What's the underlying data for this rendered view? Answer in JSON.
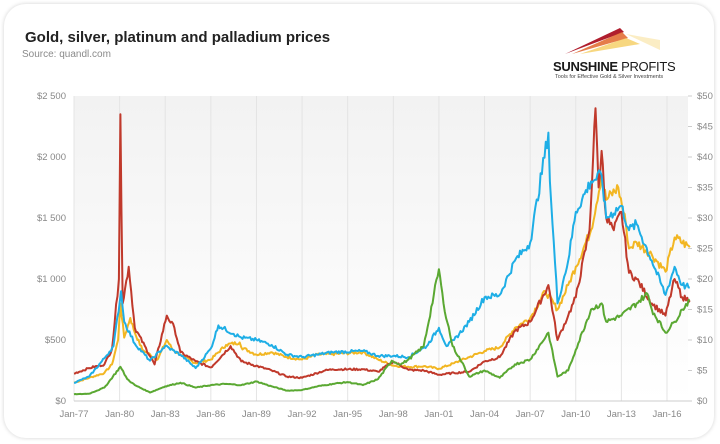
{
  "chart_data": {
    "type": "line",
    "title": "Gold, silver, platinum and palladium prices",
    "subtitle": "Source: quandl.com",
    "x_ticks": [
      "Jan-77",
      "Jan-80",
      "Jan-83",
      "Jan-86",
      "Jan-89",
      "Jan-92",
      "Jan-95",
      "Jan-98",
      "Jan-01",
      "Jan-04",
      "Jan-07",
      "Jan-10",
      "Jan-13",
      "Jan-16"
    ],
    "y_left": {
      "ticks": [
        "$0",
        "$500",
        "$1 000",
        "$1 500",
        "$2 000",
        "$2 500"
      ],
      "range": [
        0,
        2500
      ]
    },
    "y_right": {
      "ticks": [
        "$0",
        "$5",
        "$10",
        "$15",
        "$20",
        "$25",
        "$30",
        "$35",
        "$40",
        "$45",
        "$50"
      ],
      "range": [
        0,
        50
      ]
    },
    "grid": "vertical",
    "legend": "none",
    "series": [
      {
        "color": "#f2b622",
        "axis": "left",
        "points": [
          [
            1977,
            150
          ],
          [
            1978,
            190
          ],
          [
            1979,
            230
          ],
          [
            1979.5,
            300
          ],
          [
            1979.9,
            500
          ],
          [
            1980.05,
            800
          ],
          [
            1980.3,
            520
          ],
          [
            1980.7,
            680
          ],
          [
            1981,
            560
          ],
          [
            1981.5,
            420
          ],
          [
            1982.5,
            340
          ],
          [
            1983.1,
            500
          ],
          [
            1983.5,
            420
          ],
          [
            1984,
            380
          ],
          [
            1985,
            310
          ],
          [
            1986,
            340
          ],
          [
            1987,
            460
          ],
          [
            1987.9,
            480
          ],
          [
            1988,
            440
          ],
          [
            1989,
            380
          ],
          [
            1990,
            400
          ],
          [
            1991,
            360
          ],
          [
            1992,
            340
          ],
          [
            1993,
            380
          ],
          [
            1994,
            385
          ],
          [
            1996,
            400
          ],
          [
            1997,
            340
          ],
          [
            1998,
            290
          ],
          [
            1999,
            280
          ],
          [
            2000,
            285
          ],
          [
            2001,
            265
          ],
          [
            2002,
            310
          ],
          [
            2003,
            360
          ],
          [
            2004,
            410
          ],
          [
            2005,
            440
          ],
          [
            2006,
            600
          ],
          [
            2007,
            680
          ],
          [
            2008,
            900
          ],
          [
            2008.8,
            750
          ],
          [
            2009.5,
            950
          ],
          [
            2010,
            1100
          ],
          [
            2011,
            1400
          ],
          [
            2011.7,
            1850
          ],
          [
            2012,
            1650
          ],
          [
            2012.8,
            1750
          ],
          [
            2013.3,
            1450
          ],
          [
            2013.5,
            1250
          ],
          [
            2014,
            1300
          ],
          [
            2015,
            1200
          ],
          [
            2015.9,
            1060
          ],
          [
            2016.5,
            1340
          ],
          [
            2017.5,
            1260
          ]
        ]
      },
      {
        "color": "#c0392b",
        "axis": "right",
        "points": [
          [
            1977,
            4.5
          ],
          [
            1978,
            5.4
          ],
          [
            1979,
            6
          ],
          [
            1979.5,
            8.5
          ],
          [
            1979.95,
            20
          ],
          [
            1980.05,
            47
          ],
          [
            1980.2,
            16
          ],
          [
            1980.6,
            22
          ],
          [
            1981,
            12
          ],
          [
            1982.3,
            6
          ],
          [
            1983.1,
            14
          ],
          [
            1983.6,
            12
          ],
          [
            1984,
            8
          ],
          [
            1985,
            6.5
          ],
          [
            1986,
            5.5
          ],
          [
            1987.3,
            9
          ],
          [
            1988,
            6.5
          ],
          [
            1990,
            5
          ],
          [
            1991,
            4
          ],
          [
            1992,
            3.8
          ],
          [
            1993.5,
            5
          ],
          [
            1994,
            5.2
          ],
          [
            1996,
            5.2
          ],
          [
            1997,
            4.8
          ],
          [
            1998,
            6.5
          ],
          [
            1999,
            5.1
          ],
          [
            2000,
            5
          ],
          [
            2001,
            4.3
          ],
          [
            2002,
            4.6
          ],
          [
            2003,
            4.8
          ],
          [
            2004,
            6.5
          ],
          [
            2005,
            7.2
          ],
          [
            2006,
            11.5
          ],
          [
            2007,
            13
          ],
          [
            2008.2,
            19
          ],
          [
            2008.8,
            10
          ],
          [
            2009.5,
            14
          ],
          [
            2010,
            17
          ],
          [
            2010.9,
            28
          ],
          [
            2011.3,
            48
          ],
          [
            2011.5,
            35
          ],
          [
            2011.7,
            41
          ],
          [
            2012,
            30
          ],
          [
            2012.5,
            28
          ],
          [
            2013,
            31
          ],
          [
            2013.5,
            21
          ],
          [
            2014,
            20
          ],
          [
            2015,
            16
          ],
          [
            2015.9,
            14
          ],
          [
            2016.5,
            20
          ],
          [
            2017,
            17
          ],
          [
            2017.5,
            16.5
          ]
        ]
      },
      {
        "color": "#1eaee6",
        "axis": "left",
        "points": [
          [
            1977,
            150
          ],
          [
            1978,
            200
          ],
          [
            1979,
            350
          ],
          [
            1979.6,
            450
          ],
          [
            1980.1,
            900
          ],
          [
            1980.3,
            650
          ],
          [
            1981,
            470
          ],
          [
            1982,
            330
          ],
          [
            1983,
            450
          ],
          [
            1984,
            380
          ],
          [
            1985,
            270
          ],
          [
            1986,
            430
          ],
          [
            1986.5,
            620
          ],
          [
            1987.5,
            550
          ],
          [
            1988,
            520
          ],
          [
            1989,
            500
          ],
          [
            1990,
            460
          ],
          [
            1991,
            380
          ],
          [
            1992,
            360
          ],
          [
            1993,
            380
          ],
          [
            1994,
            400
          ],
          [
            1996,
            410
          ],
          [
            1997,
            370
          ],
          [
            1998,
            370
          ],
          [
            1999,
            360
          ],
          [
            2000.2,
            450
          ],
          [
            2001,
            600
          ],
          [
            2001.5,
            450
          ],
          [
            2002,
            500
          ],
          [
            2003,
            650
          ],
          [
            2004,
            850
          ],
          [
            2005,
            870
          ],
          [
            2006,
            1150
          ],
          [
            2007,
            1300
          ],
          [
            2008.2,
            2200
          ],
          [
            2008.3,
            1800
          ],
          [
            2008.8,
            800
          ],
          [
            2009.5,
            1150
          ],
          [
            2010,
            1550
          ],
          [
            2011,
            1800
          ],
          [
            2011.7,
            1850
          ],
          [
            2012,
            1500
          ],
          [
            2013,
            1600
          ],
          [
            2013.5,
            1400
          ],
          [
            2014,
            1450
          ],
          [
            2015,
            1150
          ],
          [
            2015.9,
            870
          ],
          [
            2016.5,
            1100
          ],
          [
            2017,
            950
          ],
          [
            2017.5,
            930
          ]
        ]
      },
      {
        "color": "#5aa832",
        "axis": "left",
        "points": [
          [
            1977,
            55
          ],
          [
            1978,
            60
          ],
          [
            1979,
            110
          ],
          [
            1980.05,
            280
          ],
          [
            1980.5,
            180
          ],
          [
            1981,
            130
          ],
          [
            1982,
            70
          ],
          [
            1983,
            120
          ],
          [
            1984,
            150
          ],
          [
            1985,
            110
          ],
          [
            1986,
            130
          ],
          [
            1987,
            140
          ],
          [
            1988,
            130
          ],
          [
            1989,
            160
          ],
          [
            1990,
            120
          ],
          [
            1991,
            85
          ],
          [
            1992,
            90
          ],
          [
            1993,
            120
          ],
          [
            1994,
            140
          ],
          [
            1995,
            155
          ],
          [
            1996,
            130
          ],
          [
            1997,
            180
          ],
          [
            1997.9,
            330
          ],
          [
            1998.5,
            300
          ],
          [
            1999,
            340
          ],
          [
            2000,
            450
          ],
          [
            2001,
            1080
          ],
          [
            2001.3,
            800
          ],
          [
            2001.9,
            450
          ],
          [
            2002.5,
            320
          ],
          [
            2003,
            200
          ],
          [
            2004,
            250
          ],
          [
            2005,
            190
          ],
          [
            2006,
            300
          ],
          [
            2007,
            340
          ],
          [
            2008.2,
            560
          ],
          [
            2008.8,
            200
          ],
          [
            2009.5,
            250
          ],
          [
            2010,
            420
          ],
          [
            2011,
            750
          ],
          [
            2011.7,
            800
          ],
          [
            2012,
            650
          ],
          [
            2013,
            700
          ],
          [
            2014,
            800
          ],
          [
            2014.7,
            880
          ],
          [
            2015,
            750
          ],
          [
            2015.9,
            560
          ],
          [
            2016.5,
            650
          ],
          [
            2017,
            750
          ],
          [
            2017.5,
            830
          ]
        ]
      }
    ]
  },
  "logo": {
    "name_bold": "SUNSHINE",
    "name_light": "PROFITS",
    "tagline": "Tools for Effective Gold & Silver Investments"
  }
}
